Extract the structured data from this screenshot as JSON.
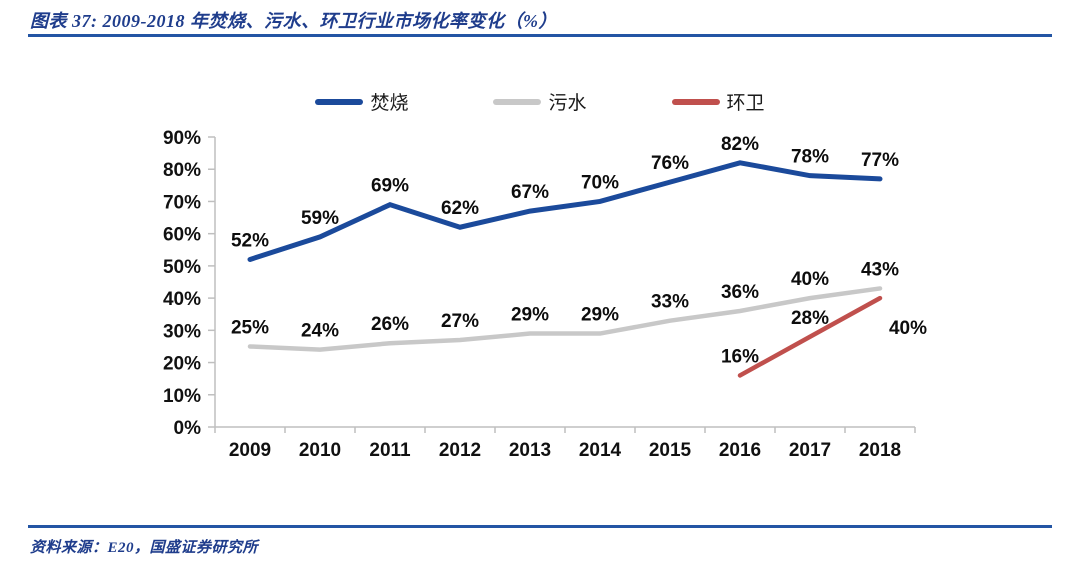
{
  "header": {
    "title": "图表 37:  2009-2018 年焚烧、污水、环卫行业市场化率变化（%）"
  },
  "footer": {
    "source": "资料来源：E20，国盛证券研究所"
  },
  "colors": {
    "accent_text_blue": "#1F3D8C",
    "rule_blue": "#2355A4",
    "axis_gray": "#BFBFBF"
  },
  "chart_data": {
    "type": "line",
    "title": "2009-2018 年焚烧、污水、环卫行业市场化率变化（%）",
    "categories": [
      "2009",
      "2010",
      "2011",
      "2012",
      "2013",
      "2014",
      "2015",
      "2016",
      "2017",
      "2018"
    ],
    "series": [
      {
        "name": "焚烧",
        "color": "#1B4A9B",
        "values": [
          52,
          59,
          69,
          62,
          67,
          70,
          76,
          82,
          78,
          77
        ]
      },
      {
        "name": "污水",
        "color": "#C8C8C8",
        "values": [
          25,
          24,
          26,
          27,
          29,
          29,
          33,
          36,
          40,
          43
        ]
      },
      {
        "name": "环卫",
        "color": "#C0504D",
        "values": [
          null,
          null,
          null,
          null,
          null,
          null,
          null,
          16,
          28,
          40
        ]
      }
    ],
    "ylim": [
      0,
      90
    ],
    "ytick_step": 10,
    "value_suffix": "%",
    "data_labels": true,
    "legend_position": "top",
    "grid": false
  }
}
